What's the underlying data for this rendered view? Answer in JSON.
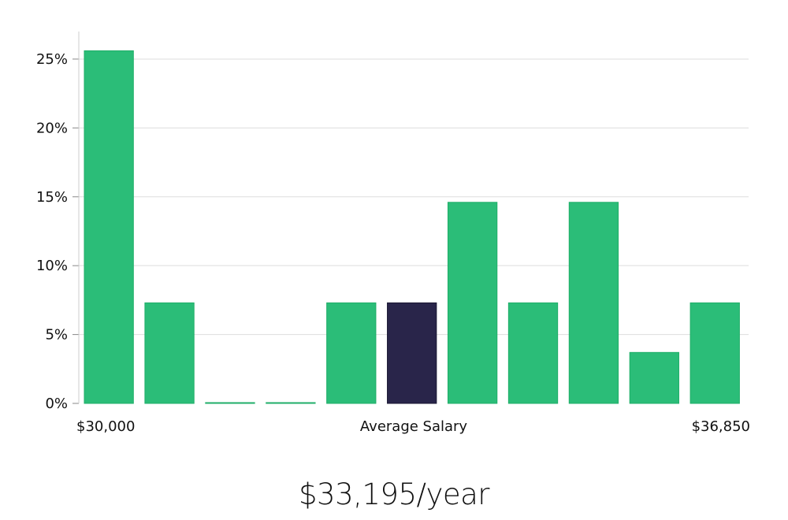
{
  "chart_data": {
    "type": "bar",
    "values": [
      25.6,
      7.3,
      0,
      0,
      7.3,
      7.3,
      14.6,
      7.3,
      14.6,
      3.7,
      7.3
    ],
    "highlight_index": 5,
    "ylim": [
      0,
      27
    ],
    "yticks": [
      0,
      5,
      10,
      15,
      20,
      25
    ],
    "ytick_format": "%",
    "grid": true,
    "x_labels": {
      "left": "$30,000",
      "center": "Average Salary",
      "right": "$36,850"
    },
    "colors": {
      "bar": "#2bbd78",
      "bar_stroke": "#1fae68",
      "highlight": "#29254a",
      "grid": "#dddddd",
      "axis": "#cccccc"
    }
  },
  "salary_label": "$33,195/year"
}
